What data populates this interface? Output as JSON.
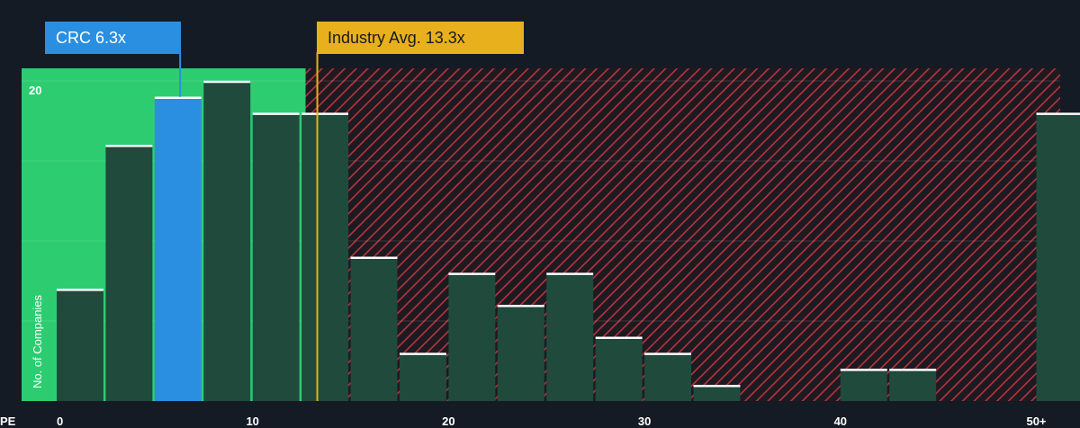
{
  "chart_data": {
    "type": "bar",
    "title": "",
    "xlabel": "PE",
    "ylabel": "No. of Companies",
    "x_ticks": [
      "0",
      "10",
      "20",
      "30",
      "40",
      "50+"
    ],
    "y_ticks": [
      "20"
    ],
    "xlim": [
      0,
      51
    ],
    "ylim": [
      0,
      20
    ],
    "bin_width": 2.5,
    "bins": [
      {
        "start": 0.0,
        "value": 7
      },
      {
        "start": 2.5,
        "value": 16
      },
      {
        "start": 5.0,
        "value": 19
      },
      {
        "start": 7.5,
        "value": 20
      },
      {
        "start": 10.0,
        "value": 18
      },
      {
        "start": 12.5,
        "value": 18
      },
      {
        "start": 15.0,
        "value": 9
      },
      {
        "start": 17.5,
        "value": 3
      },
      {
        "start": 20.0,
        "value": 8
      },
      {
        "start": 22.5,
        "value": 6
      },
      {
        "start": 25.0,
        "value": 8
      },
      {
        "start": 27.5,
        "value": 4
      },
      {
        "start": 30.0,
        "value": 3
      },
      {
        "start": 32.5,
        "value": 1
      },
      {
        "start": 35.0,
        "value": 0
      },
      {
        "start": 37.5,
        "value": 0
      },
      {
        "start": 40.0,
        "value": 2
      },
      {
        "start": 42.5,
        "value": 2
      },
      {
        "start": 45.0,
        "value": 0
      },
      {
        "start": 47.5,
        "value": 0
      },
      {
        "start": 50.0,
        "value": 18
      }
    ],
    "subject": {
      "label": "CRC 6.3x",
      "value": 6.3
    },
    "industry_avg": {
      "label": "Industry Avg. 13.3x",
      "value": 13.3
    },
    "grid": true,
    "colors": {
      "background": "#151b24",
      "good_zone": "#2ecc71",
      "bad_zone_hatch": "#b8343c",
      "bar": "#1f4a3c",
      "bar_top": "#ffffff",
      "subject_bar": "#2a8fe0",
      "subject_callout": "#2a8fe0",
      "industry_callout": "#e8b01c"
    }
  }
}
